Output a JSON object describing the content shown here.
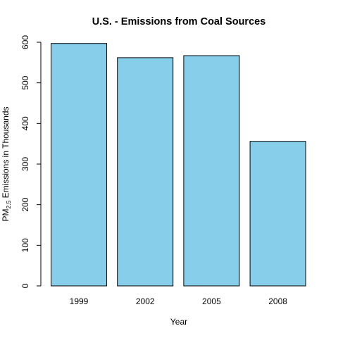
{
  "chart_data": {
    "type": "bar",
    "title": "U.S. - Emissions from Coal Sources",
    "xlabel": "Year",
    "ylabel": {
      "prefix": "PM",
      "subscript": "2.5",
      "suffix": " Emissions in Thousands"
    },
    "categories": [
      "1999",
      "2002",
      "2005",
      "2008"
    ],
    "values": [
      597,
      562,
      567,
      356
    ],
    "ylim": [
      0,
      600
    ],
    "yticks": [
      "0",
      "100",
      "200",
      "300",
      "400",
      "500",
      "600"
    ],
    "bar_color": "#87ceeb",
    "bar_border_color": "#000000",
    "grid": false,
    "legend": "none"
  }
}
